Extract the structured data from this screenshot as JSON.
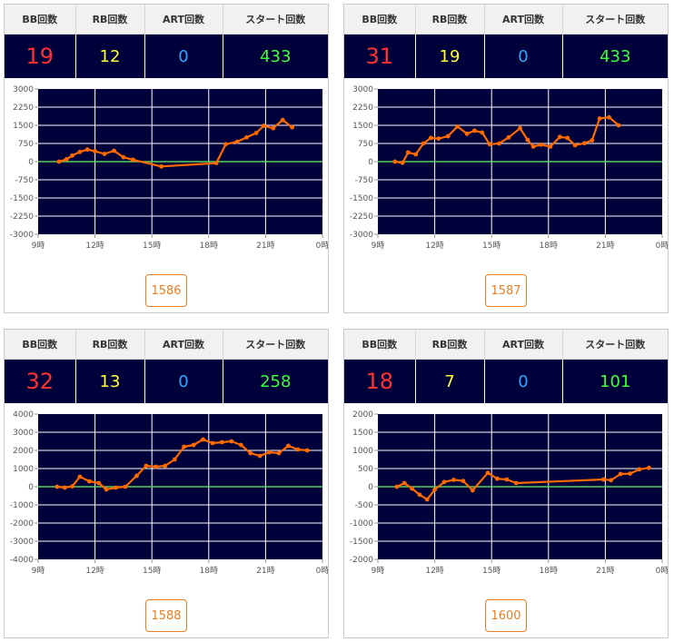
{
  "headers": {
    "bb": "BB回数",
    "rb": "RB回数",
    "art": "ART回数",
    "start": "スタート回数"
  },
  "colors": {
    "bb": "#ff3030",
    "rb": "#ffff3a",
    "art": "#2aa8ff",
    "start": "#3aff3a",
    "plot_bg": "#00003a",
    "series": "#ff6a00",
    "zero_line": "#5bd15b",
    "badge": "#e67e22"
  },
  "x_tick_labels": [
    "9時",
    "12時",
    "15時",
    "18時",
    "21時",
    "0時"
  ],
  "machines": [
    {
      "stats": {
        "bb": "19",
        "rb": "12",
        "art": "0",
        "start": "433"
      },
      "machine_number": "1586",
      "y_tick_labels": [
        "3000",
        "2250",
        "1500",
        "750",
        "0",
        "-750",
        "-1500",
        "-2250",
        "-3000"
      ]
    },
    {
      "stats": {
        "bb": "31",
        "rb": "19",
        "art": "0",
        "start": "433"
      },
      "machine_number": "1587",
      "y_tick_labels": [
        "3000",
        "2250",
        "1500",
        "750",
        "0",
        "-750",
        "-1500",
        "-2250",
        "-3000"
      ]
    },
    {
      "stats": {
        "bb": "32",
        "rb": "13",
        "art": "0",
        "start": "258"
      },
      "machine_number": "1588",
      "y_tick_labels": [
        "4000",
        "3000",
        "2000",
        "1000",
        "0",
        "-1000",
        "-2000",
        "-3000",
        "-4000"
      ]
    },
    {
      "stats": {
        "bb": "18",
        "rb": "7",
        "art": "0",
        "start": "101"
      },
      "machine_number": "1600",
      "y_tick_labels": [
        "2000",
        "1500",
        "1000",
        "500",
        "0",
        "-500",
        "-1000",
        "-1500",
        "-2000"
      ]
    }
  ],
  "chart_data": [
    {
      "type": "line",
      "x_unit": "hour",
      "xlim": [
        9,
        24
      ],
      "ylim": [
        -3000,
        3000
      ],
      "series": [
        {
          "points": [
            [
              10.1,
              0
            ],
            [
              10.5,
              100
            ],
            [
              10.8,
              250
            ],
            [
              11.2,
              400
            ],
            [
              11.6,
              500
            ],
            [
              12.0,
              430
            ],
            [
              12.5,
              320
            ],
            [
              13.0,
              450
            ],
            [
              13.5,
              180
            ],
            [
              14.0,
              80
            ],
            [
              15.5,
              -200
            ],
            [
              18.4,
              -60
            ],
            [
              18.9,
              720
            ],
            [
              19.5,
              820
            ],
            [
              20.0,
              1000
            ],
            [
              20.5,
              1180
            ],
            [
              20.9,
              1480
            ],
            [
              21.4,
              1380
            ],
            [
              21.9,
              1720
            ],
            [
              22.4,
              1420
            ]
          ]
        }
      ]
    },
    {
      "type": "line",
      "x_unit": "hour",
      "xlim": [
        9,
        24
      ],
      "ylim": [
        -3000,
        3000
      ],
      "series": [
        {
          "points": [
            [
              9.9,
              0
            ],
            [
              10.3,
              -50
            ],
            [
              10.6,
              380
            ],
            [
              11.0,
              300
            ],
            [
              11.4,
              750
            ],
            [
              11.8,
              980
            ],
            [
              12.2,
              950
            ],
            [
              12.7,
              1050
            ],
            [
              13.2,
              1450
            ],
            [
              13.7,
              1150
            ],
            [
              14.1,
              1280
            ],
            [
              14.5,
              1200
            ],
            [
              14.9,
              720
            ],
            [
              15.4,
              750
            ],
            [
              15.9,
              1000
            ],
            [
              16.5,
              1380
            ],
            [
              16.9,
              900
            ],
            [
              17.2,
              620
            ],
            [
              17.6,
              700
            ],
            [
              18.1,
              620
            ],
            [
              18.6,
              1020
            ],
            [
              19.0,
              980
            ],
            [
              19.4,
              680
            ],
            [
              19.9,
              760
            ],
            [
              20.3,
              880
            ],
            [
              20.7,
              1780
            ],
            [
              21.2,
              1830
            ],
            [
              21.7,
              1500
            ]
          ]
        }
      ]
    },
    {
      "type": "line",
      "x_unit": "hour",
      "xlim": [
        9,
        24
      ],
      "ylim": [
        -4000,
        4000
      ],
      "series": [
        {
          "points": [
            [
              10.0,
              0
            ],
            [
              10.4,
              -50
            ],
            [
              10.8,
              20
            ],
            [
              11.2,
              550
            ],
            [
              11.7,
              300
            ],
            [
              12.2,
              200
            ],
            [
              12.6,
              -150
            ],
            [
              13.1,
              -50
            ],
            [
              13.6,
              0
            ],
            [
              14.2,
              600
            ],
            [
              14.7,
              1150
            ],
            [
              15.2,
              1100
            ],
            [
              15.7,
              1150
            ],
            [
              16.2,
              1500
            ],
            [
              16.7,
              2200
            ],
            [
              17.2,
              2300
            ],
            [
              17.7,
              2600
            ],
            [
              18.2,
              2400
            ],
            [
              18.7,
              2450
            ],
            [
              19.2,
              2500
            ],
            [
              19.7,
              2300
            ],
            [
              20.2,
              1850
            ],
            [
              20.7,
              1700
            ],
            [
              21.2,
              1900
            ],
            [
              21.7,
              1850
            ],
            [
              22.2,
              2250
            ],
            [
              22.7,
              2050
            ],
            [
              23.2,
              2000
            ]
          ]
        }
      ]
    },
    {
      "type": "line",
      "x_unit": "hour",
      "xlim": [
        9,
        24
      ],
      "ylim": [
        -2000,
        2000
      ],
      "series": [
        {
          "points": [
            [
              10.0,
              0
            ],
            [
              10.4,
              100
            ],
            [
              10.8,
              -50
            ],
            [
              11.2,
              -220
            ],
            [
              11.6,
              -350
            ],
            [
              12.0,
              -80
            ],
            [
              12.5,
              130
            ],
            [
              13.0,
              190
            ],
            [
              13.5,
              160
            ],
            [
              14.0,
              -100
            ],
            [
              14.8,
              380
            ],
            [
              15.3,
              220
            ],
            [
              15.8,
              200
            ],
            [
              16.3,
              100
            ],
            [
              20.9,
              200
            ],
            [
              21.3,
              180
            ],
            [
              21.8,
              350
            ],
            [
              22.3,
              360
            ],
            [
              22.8,
              480
            ],
            [
              23.3,
              520
            ]
          ]
        }
      ]
    }
  ]
}
